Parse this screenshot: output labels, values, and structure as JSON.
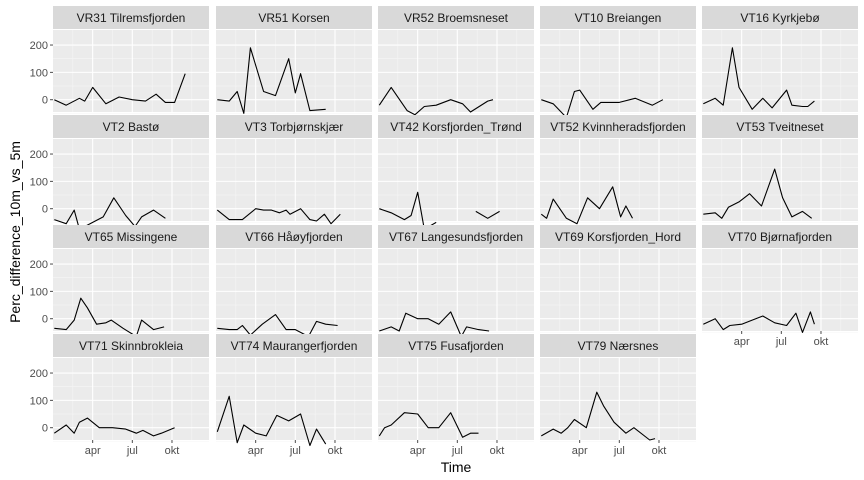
{
  "chart_data": {
    "type": "line",
    "xlabel": "Time",
    "ylabel": "Perc_difference_10m_vs_5m",
    "x_ticks": [
      "apr",
      "jul",
      "okt"
    ],
    "x_domain": [
      1,
      12.8
    ],
    "x_tick_months": [
      4,
      7,
      10
    ],
    "ylim": [
      -45,
      255
    ],
    "y_ticks": [
      0,
      100,
      200
    ],
    "grid": true,
    "panels": [
      {
        "name": "VR31 Tilremsfjorden",
        "series": [
          [
            [
              1.1,
              0
            ],
            [
              2.0,
              -20
            ],
            [
              3.0,
              5
            ],
            [
              3.4,
              -5
            ],
            [
              4.0,
              45
            ],
            [
              5.0,
              -15
            ],
            [
              6.0,
              10
            ],
            [
              7.0,
              0
            ],
            [
              8.0,
              -5
            ],
            [
              8.8,
              20
            ],
            [
              9.5,
              -10
            ],
            [
              10.2,
              -10
            ],
            [
              11.0,
              95
            ]
          ]
        ]
      },
      {
        "name": "VR51 Korsen",
        "series": [
          [
            [
              1.1,
              0
            ],
            [
              2.0,
              -5
            ],
            [
              2.6,
              30
            ],
            [
              3.1,
              -50
            ],
            [
              3.6,
              190
            ],
            [
              4.6,
              30
            ],
            [
              5.5,
              15
            ],
            [
              6.5,
              150
            ],
            [
              7.0,
              25
            ],
            [
              7.4,
              95
            ],
            [
              8.1,
              -40
            ],
            [
              9.3,
              -35
            ]
          ]
        ]
      },
      {
        "name": "VR52 Broemsneset",
        "series": [
          [
            [
              1.1,
              -20
            ],
            [
              2.0,
              45
            ],
            [
              3.2,
              -40
            ],
            [
              3.8,
              -55
            ],
            [
              4.5,
              -25
            ],
            [
              5.4,
              -20
            ],
            [
              6.5,
              0
            ],
            [
              7.4,
              -15
            ],
            [
              8.0,
              -45
            ],
            [
              9.3,
              -5
            ],
            [
              9.7,
              0
            ]
          ]
        ]
      },
      {
        "name": "VT10 Breiangen",
        "series": [
          [
            [
              1.1,
              0
            ],
            [
              2.0,
              -15
            ],
            [
              3.0,
              -65
            ],
            [
              3.6,
              30
            ],
            [
              4.0,
              35
            ],
            [
              5.0,
              -35
            ],
            [
              5.6,
              -10
            ],
            [
              6.5,
              -10
            ],
            [
              7.0,
              -10
            ],
            [
              8.2,
              5
            ],
            [
              9.5,
              -20
            ],
            [
              10.3,
              0
            ]
          ]
        ]
      },
      {
        "name": "VT16 Kyrkjebø",
        "series": [
          [
            [
              1.1,
              -15
            ],
            [
              2.0,
              5
            ],
            [
              2.6,
              -20
            ],
            [
              3.3,
              190
            ],
            [
              3.8,
              45
            ],
            [
              4.8,
              -35
            ],
            [
              5.6,
              5
            ],
            [
              6.3,
              -30
            ],
            [
              7.4,
              35
            ],
            [
              7.8,
              -20
            ],
            [
              8.6,
              -25
            ],
            [
              9.0,
              -25
            ],
            [
              9.5,
              -5
            ]
          ]
        ]
      },
      {
        "name": "VT2 Bastø",
        "series": [
          [
            [
              1.1,
              -40
            ],
            [
              2.0,
              -55
            ],
            [
              2.6,
              -5
            ],
            [
              3.0,
              -75
            ],
            [
              3.6,
              -60
            ],
            [
              4.8,
              -30
            ],
            [
              5.6,
              40
            ],
            [
              6.5,
              -25
            ],
            [
              7.2,
              -65
            ],
            [
              7.7,
              -30
            ],
            [
              8.6,
              -5
            ],
            [
              9.5,
              -35
            ]
          ]
        ]
      },
      {
        "name": "VT3 Torbjørnskjær",
        "series": [
          [
            [
              1.1,
              -5
            ],
            [
              2.0,
              -40
            ],
            [
              3.0,
              -40
            ],
            [
              4.0,
              0
            ],
            [
              4.6,
              -5
            ],
            [
              5.2,
              -5
            ],
            [
              5.8,
              -15
            ],
            [
              6.3,
              -5
            ],
            [
              6.6,
              -20
            ],
            [
              7.4,
              0
            ],
            [
              8.1,
              -40
            ],
            [
              8.6,
              -45
            ],
            [
              9.2,
              -20
            ],
            [
              9.7,
              -55
            ],
            [
              10.4,
              -20
            ]
          ]
        ]
      },
      {
        "name": "VT42 Korsfjorden_Trønd",
        "series": [
          [
            [
              1.1,
              0
            ],
            [
              2.0,
              -15
            ],
            [
              3.0,
              -40
            ],
            [
              3.5,
              -25
            ],
            [
              4.0,
              60
            ],
            [
              4.5,
              -75
            ],
            [
              5.4,
              -50
            ]
          ],
          [
            [
              8.4,
              -10
            ],
            [
              9.3,
              -35
            ],
            [
              10.2,
              -10
            ]
          ]
        ]
      },
      {
        "name": "VT52 Kvinnheradsfjorden",
        "series": [
          [
            [
              1.1,
              -20
            ],
            [
              1.5,
              -35
            ],
            [
              2.0,
              35
            ],
            [
              3.0,
              -35
            ],
            [
              3.8,
              -55
            ],
            [
              4.6,
              40
            ],
            [
              5.5,
              0
            ],
            [
              6.5,
              80
            ],
            [
              7.1,
              -30
            ],
            [
              7.5,
              10
            ],
            [
              8.0,
              -35
            ]
          ]
        ]
      },
      {
        "name": "VT53 Tveitneset",
        "series": [
          [
            [
              1.1,
              -20
            ],
            [
              2.0,
              -15
            ],
            [
              2.5,
              -35
            ],
            [
              3.0,
              5
            ],
            [
              3.8,
              25
            ],
            [
              4.6,
              55
            ],
            [
              5.5,
              10
            ],
            [
              6.5,
              145
            ],
            [
              7.1,
              40
            ],
            [
              7.8,
              -30
            ],
            [
              8.6,
              -10
            ],
            [
              9.3,
              -35
            ]
          ]
        ]
      },
      {
        "name": "VT65 Missingene",
        "series": [
          [
            [
              1.1,
              -35
            ],
            [
              2.0,
              -40
            ],
            [
              2.6,
              -5
            ],
            [
              3.1,
              75
            ],
            [
              3.6,
              40
            ],
            [
              4.3,
              -20
            ],
            [
              5.0,
              -15
            ],
            [
              5.4,
              -5
            ],
            [
              6.3,
              -35
            ],
            [
              7.3,
              -65
            ],
            [
              7.7,
              -5
            ],
            [
              8.6,
              -40
            ],
            [
              9.4,
              -30
            ]
          ]
        ]
      },
      {
        "name": "VT66 Håøyfjorden",
        "series": [
          [
            [
              1.1,
              -35
            ],
            [
              2.0,
              -40
            ],
            [
              2.6,
              -40
            ],
            [
              3.0,
              -25
            ],
            [
              3.6,
              -60
            ],
            [
              4.5,
              -20
            ],
            [
              5.5,
              15
            ],
            [
              6.3,
              -40
            ],
            [
              7.0,
              -40
            ],
            [
              8.0,
              -65
            ],
            [
              8.6,
              -10
            ],
            [
              9.3,
              -20
            ],
            [
              10.2,
              -25
            ]
          ]
        ]
      },
      {
        "name": "VT67 Langesundsfjorden",
        "series": [
          [
            [
              1.1,
              -45
            ],
            [
              2.0,
              -30
            ],
            [
              2.6,
              -45
            ],
            [
              3.1,
              20
            ],
            [
              4.0,
              0
            ],
            [
              4.8,
              0
            ],
            [
              5.6,
              -20
            ],
            [
              6.5,
              25
            ],
            [
              7.3,
              -65
            ],
            [
              7.7,
              -30
            ],
            [
              8.6,
              -40
            ],
            [
              9.4,
              -45
            ]
          ]
        ]
      },
      {
        "name": "VT69 Korsfjorden_Hord",
        "series": []
      },
      {
        "name": "VT70 Bjørnafjorden",
        "series": [
          [
            [
              1.1,
              -20
            ],
            [
              2.0,
              0
            ],
            [
              2.6,
              -40
            ],
            [
              3.1,
              -25
            ],
            [
              4.0,
              -20
            ],
            [
              4.8,
              -5
            ],
            [
              5.6,
              10
            ],
            [
              6.5,
              -15
            ],
            [
              7.4,
              -25
            ],
            [
              8.1,
              20
            ],
            [
              8.6,
              -50
            ],
            [
              9.2,
              25
            ],
            [
              9.5,
              -20
            ]
          ]
        ]
      },
      {
        "name": "VT71 Skinnbrokleia",
        "series": [
          [
            [
              1.1,
              -20
            ],
            [
              2.0,
              10
            ],
            [
              2.6,
              -20
            ],
            [
              3.0,
              20
            ],
            [
              3.6,
              35
            ],
            [
              4.5,
              0
            ],
            [
              5.5,
              0
            ],
            [
              6.5,
              -5
            ],
            [
              7.3,
              -20
            ],
            [
              7.8,
              -10
            ],
            [
              8.6,
              -30
            ],
            [
              9.2,
              -20
            ],
            [
              10.2,
              0
            ]
          ]
        ]
      },
      {
        "name": "VT74 Maurangerfjorden",
        "series": [
          [
            [
              1.1,
              -15
            ],
            [
              2.0,
              115
            ],
            [
              2.6,
              -55
            ],
            [
              3.1,
              10
            ],
            [
              4.0,
              -20
            ],
            [
              4.8,
              -30
            ],
            [
              5.6,
              45
            ],
            [
              6.5,
              25
            ],
            [
              7.4,
              50
            ],
            [
              8.1,
              -65
            ],
            [
              8.6,
              -5
            ],
            [
              9.3,
              -60
            ]
          ]
        ]
      },
      {
        "name": "VT75 Fusafjorden",
        "series": [
          [
            [
              1.1,
              -30
            ],
            [
              1.5,
              0
            ],
            [
              2.0,
              10
            ],
            [
              3.0,
              55
            ],
            [
              4.0,
              50
            ],
            [
              4.8,
              0
            ],
            [
              5.6,
              0
            ],
            [
              6.5,
              55
            ],
            [
              7.4,
              -35
            ],
            [
              8.0,
              -20
            ],
            [
              8.6,
              -20
            ]
          ]
        ]
      },
      {
        "name": "VT79 Nærsnes",
        "series": [
          [
            [
              1.1,
              -30
            ],
            [
              2.0,
              -5
            ],
            [
              2.6,
              -20
            ],
            [
              3.1,
              0
            ],
            [
              3.6,
              30
            ],
            [
              4.5,
              0
            ],
            [
              5.3,
              130
            ],
            [
              5.8,
              80
            ],
            [
              6.6,
              20
            ],
            [
              7.5,
              -20
            ],
            [
              8.1,
              0
            ],
            [
              9.3,
              -45
            ],
            [
              9.7,
              -40
            ]
          ]
        ]
      }
    ]
  }
}
